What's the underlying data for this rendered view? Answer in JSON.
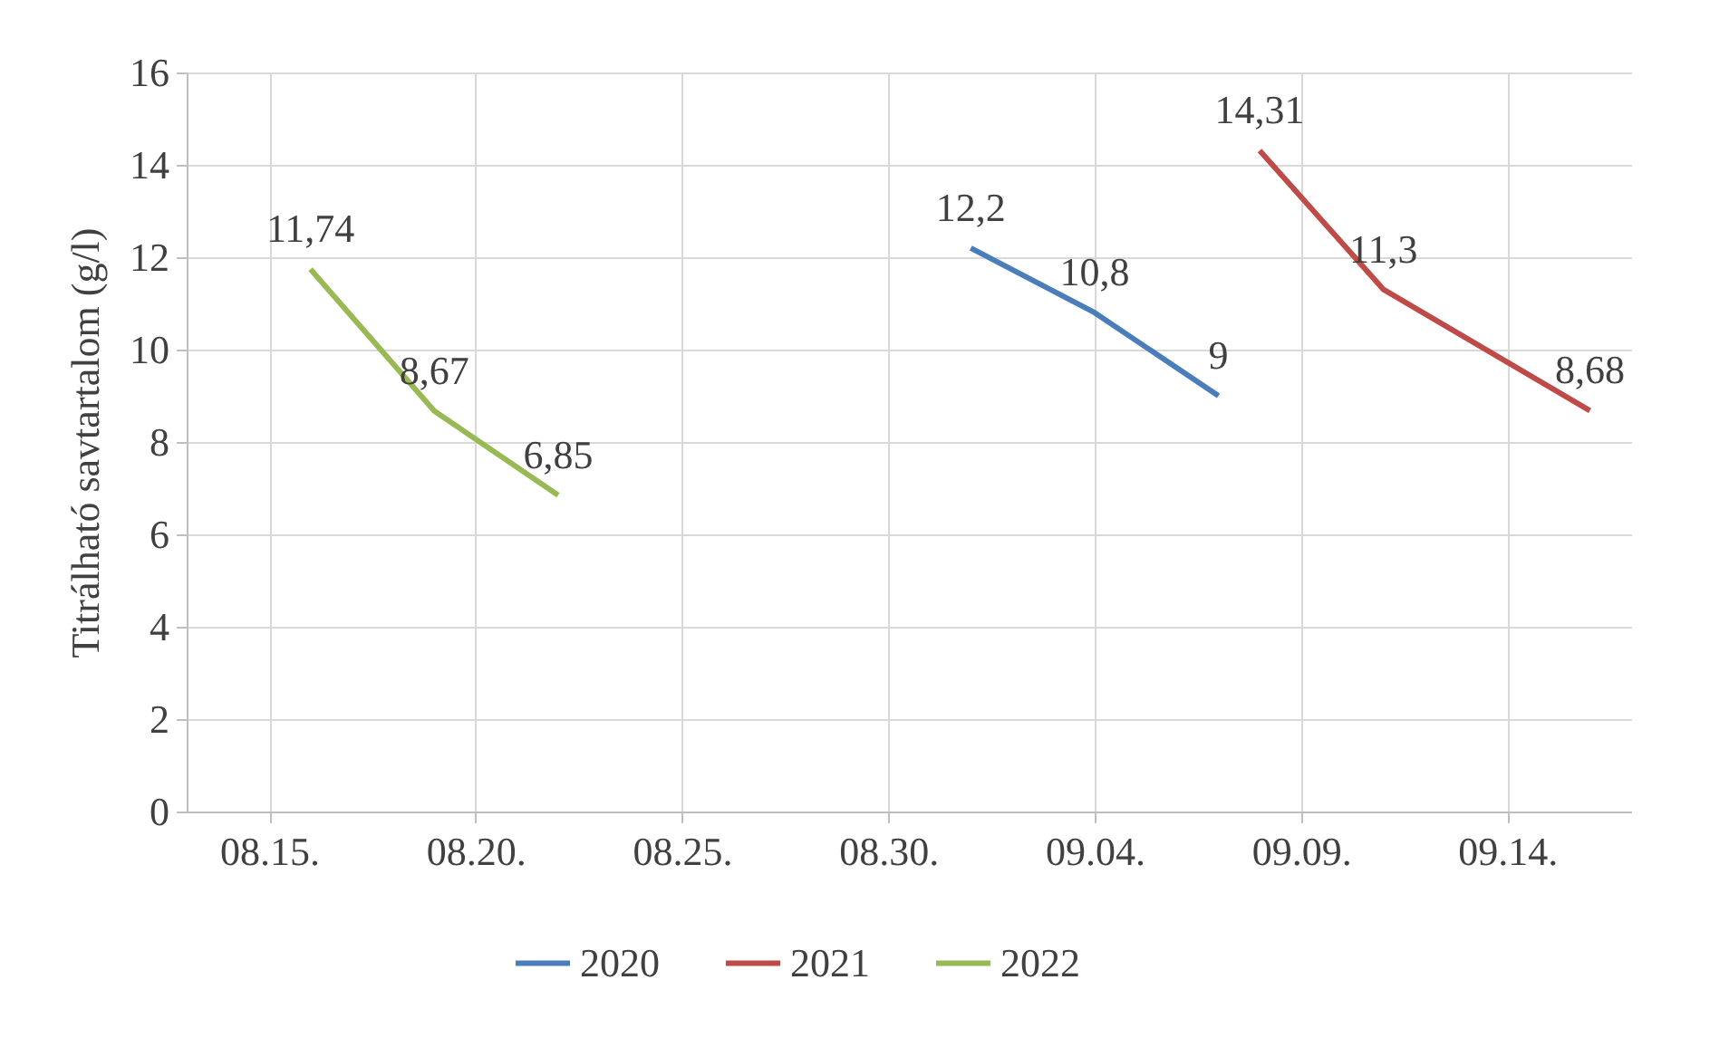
{
  "chart_data": {
    "type": "line",
    "ylabel": "Titrálható savtartalom (g/l)",
    "series": [
      {
        "name": "2020",
        "color": "#4a7ebb",
        "x": [
          "--09-01",
          "--09-04",
          "--09-07"
        ],
        "values": [
          12.2,
          10.8,
          9
        ],
        "value_labels": [
          "12,2",
          "10,8",
          "9"
        ]
      },
      {
        "name": "2021",
        "color": "#be4b48",
        "x": [
          "--09-08",
          "--09-11",
          "--09-16"
        ],
        "values": [
          14.31,
          11.3,
          8.68
        ],
        "value_labels": [
          "14,31",
          "11,3",
          "8,68"
        ]
      },
      {
        "name": "2022",
        "color": "#98b954",
        "x": [
          "--08-16",
          "--08-19",
          "--08-22"
        ],
        "values": [
          11.74,
          8.67,
          6.85
        ],
        "value_labels": [
          "11,74",
          "8,67",
          "6,85"
        ]
      }
    ],
    "xlim": [
      "--08-13",
      "--09-17"
    ],
    "xticks": [
      {
        "value": "--08-15",
        "label": "08.15."
      },
      {
        "value": "--08-20",
        "label": "08.20."
      },
      {
        "value": "--08-25",
        "label": "08.25."
      },
      {
        "value": "--08-30",
        "label": "08.30."
      },
      {
        "value": "--09-04",
        "label": "09.04."
      },
      {
        "value": "--09-09",
        "label": "09.09."
      },
      {
        "value": "--09-14",
        "label": "09.14."
      }
    ],
    "ylim": [
      0,
      16
    ],
    "yticks": [
      0,
      2,
      4,
      6,
      8,
      10,
      12,
      14,
      16
    ],
    "grid": true,
    "legend": "bottom",
    "line_style": "solid",
    "marker": "none"
  }
}
